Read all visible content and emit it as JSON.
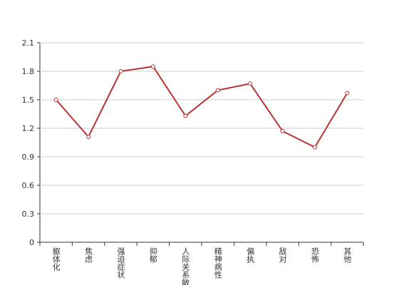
{
  "chart_data": {
    "type": "line",
    "categories": [
      "躯体化",
      "焦虑",
      "强迫症状",
      "抑郁",
      "人际关系敏感",
      "精神病性",
      "偏执",
      "敌对",
      "恐怖",
      "其他"
    ],
    "series": [
      {
        "color": "#b83333",
        "values": [
          1.5,
          1.11,
          1.8,
          1.85,
          1.33,
          1.6,
          1.67,
          1.17,
          1.0,
          1.57
        ]
      }
    ],
    "ylim": [
      0,
      2.1
    ],
    "yticks": [
      0,
      0.3,
      0.6,
      0.9,
      1.2,
      1.5,
      1.8,
      2.1
    ],
    "grid": true
  }
}
